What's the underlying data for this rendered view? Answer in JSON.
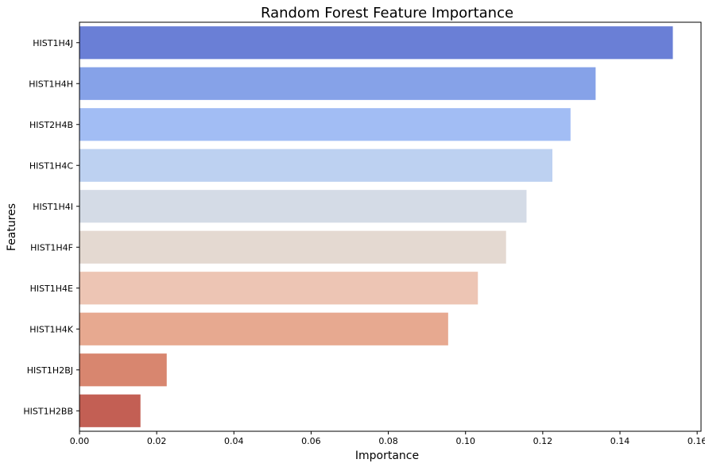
{
  "chart_data": {
    "type": "bar",
    "orientation": "horizontal",
    "title": "Random Forest Feature Importance",
    "xlabel": "Importance",
    "ylabel": "Features",
    "xlim": [
      0,
      0.161
    ],
    "xticks": [
      "0.00",
      "0.02",
      "0.04",
      "0.06",
      "0.08",
      "0.10",
      "0.12",
      "0.14",
      "0.16"
    ],
    "grid": false,
    "legend": "none",
    "categories": [
      "HIST1H4J",
      "HIST1H4H",
      "HIST2H4B",
      "HIST1H4C",
      "HIST1H4I",
      "HIST1H4F",
      "HIST1H4E",
      "HIST1H4K",
      "HIST1H2BJ",
      "HIST1H2BB"
    ],
    "values": [
      0.1537,
      0.1337,
      0.1272,
      0.1225,
      0.1158,
      0.1105,
      0.1032,
      0.0955,
      0.0226,
      0.0158
    ],
    "colors": [
      "#6a7fd6",
      "#86a2e8",
      "#a2bdf4",
      "#bdd1f1",
      "#d4dbe6",
      "#e4d9d1",
      "#edc5b4",
      "#e7a990",
      "#d8866f",
      "#c35f54"
    ]
  }
}
